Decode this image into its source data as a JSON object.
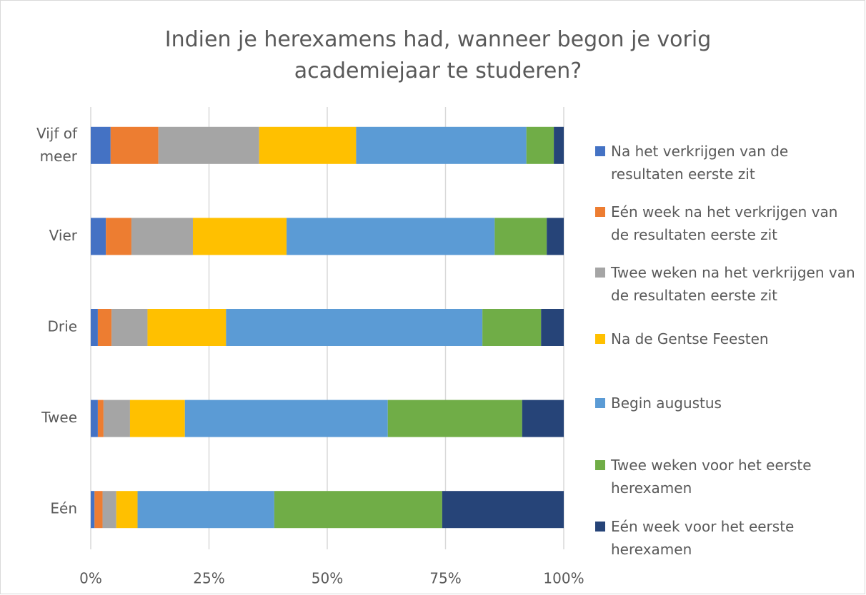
{
  "chart_data": {
    "type": "stacked_bar_horizontal_percent",
    "title": "Indien je herexamens had, wanneer begon je vorig academiejaar te studeren?",
    "categories": [
      "Vijf of meer",
      "Vier",
      "Drie",
      "Twee",
      "Eén"
    ],
    "series": [
      {
        "name": "Na het verkrijgen van de resultaten eerste zit",
        "color": "#4472c4",
        "values": [
          4.2,
          3.2,
          1.5,
          1.5,
          0.8
        ]
      },
      {
        "name": "Eén week na het verkrijgen van de resultaten eerste zit",
        "color": "#ed7d31",
        "values": [
          10.1,
          5.4,
          2.9,
          1.2,
          1.7
        ]
      },
      {
        "name": "Twee weken na het verkrijgen van de resultaten eerste zit",
        "color": "#a5a5a5",
        "values": [
          21.3,
          13.0,
          7.6,
          5.6,
          2.9
        ]
      },
      {
        "name": "Na de Gentse Feesten",
        "color": "#ffc000",
        "values": [
          20.5,
          19.8,
          16.6,
          11.6,
          4.5
        ]
      },
      {
        "name": "Begin augustus",
        "color": "#5b9bd5",
        "values": [
          36.0,
          44.0,
          54.2,
          42.9,
          28.9
        ]
      },
      {
        "name": "Twee weken voor het eerste herexamen",
        "color": "#70ad47",
        "values": [
          5.8,
          11.0,
          12.4,
          28.4,
          35.5
        ]
      },
      {
        "name": "Eén week voor het eerste herexamen",
        "color": "#264478",
        "values": [
          2.1,
          3.6,
          4.8,
          8.8,
          25.7
        ]
      }
    ],
    "xlim": [
      0,
      100
    ],
    "xticks": [
      {
        "value": 0,
        "label": "0%"
      },
      {
        "value": 25,
        "label": "25%"
      },
      {
        "value": 50,
        "label": "50%"
      },
      {
        "value": 75,
        "label": "75%"
      },
      {
        "value": 100,
        "label": "100%"
      }
    ],
    "grid": true,
    "legend": "right"
  }
}
